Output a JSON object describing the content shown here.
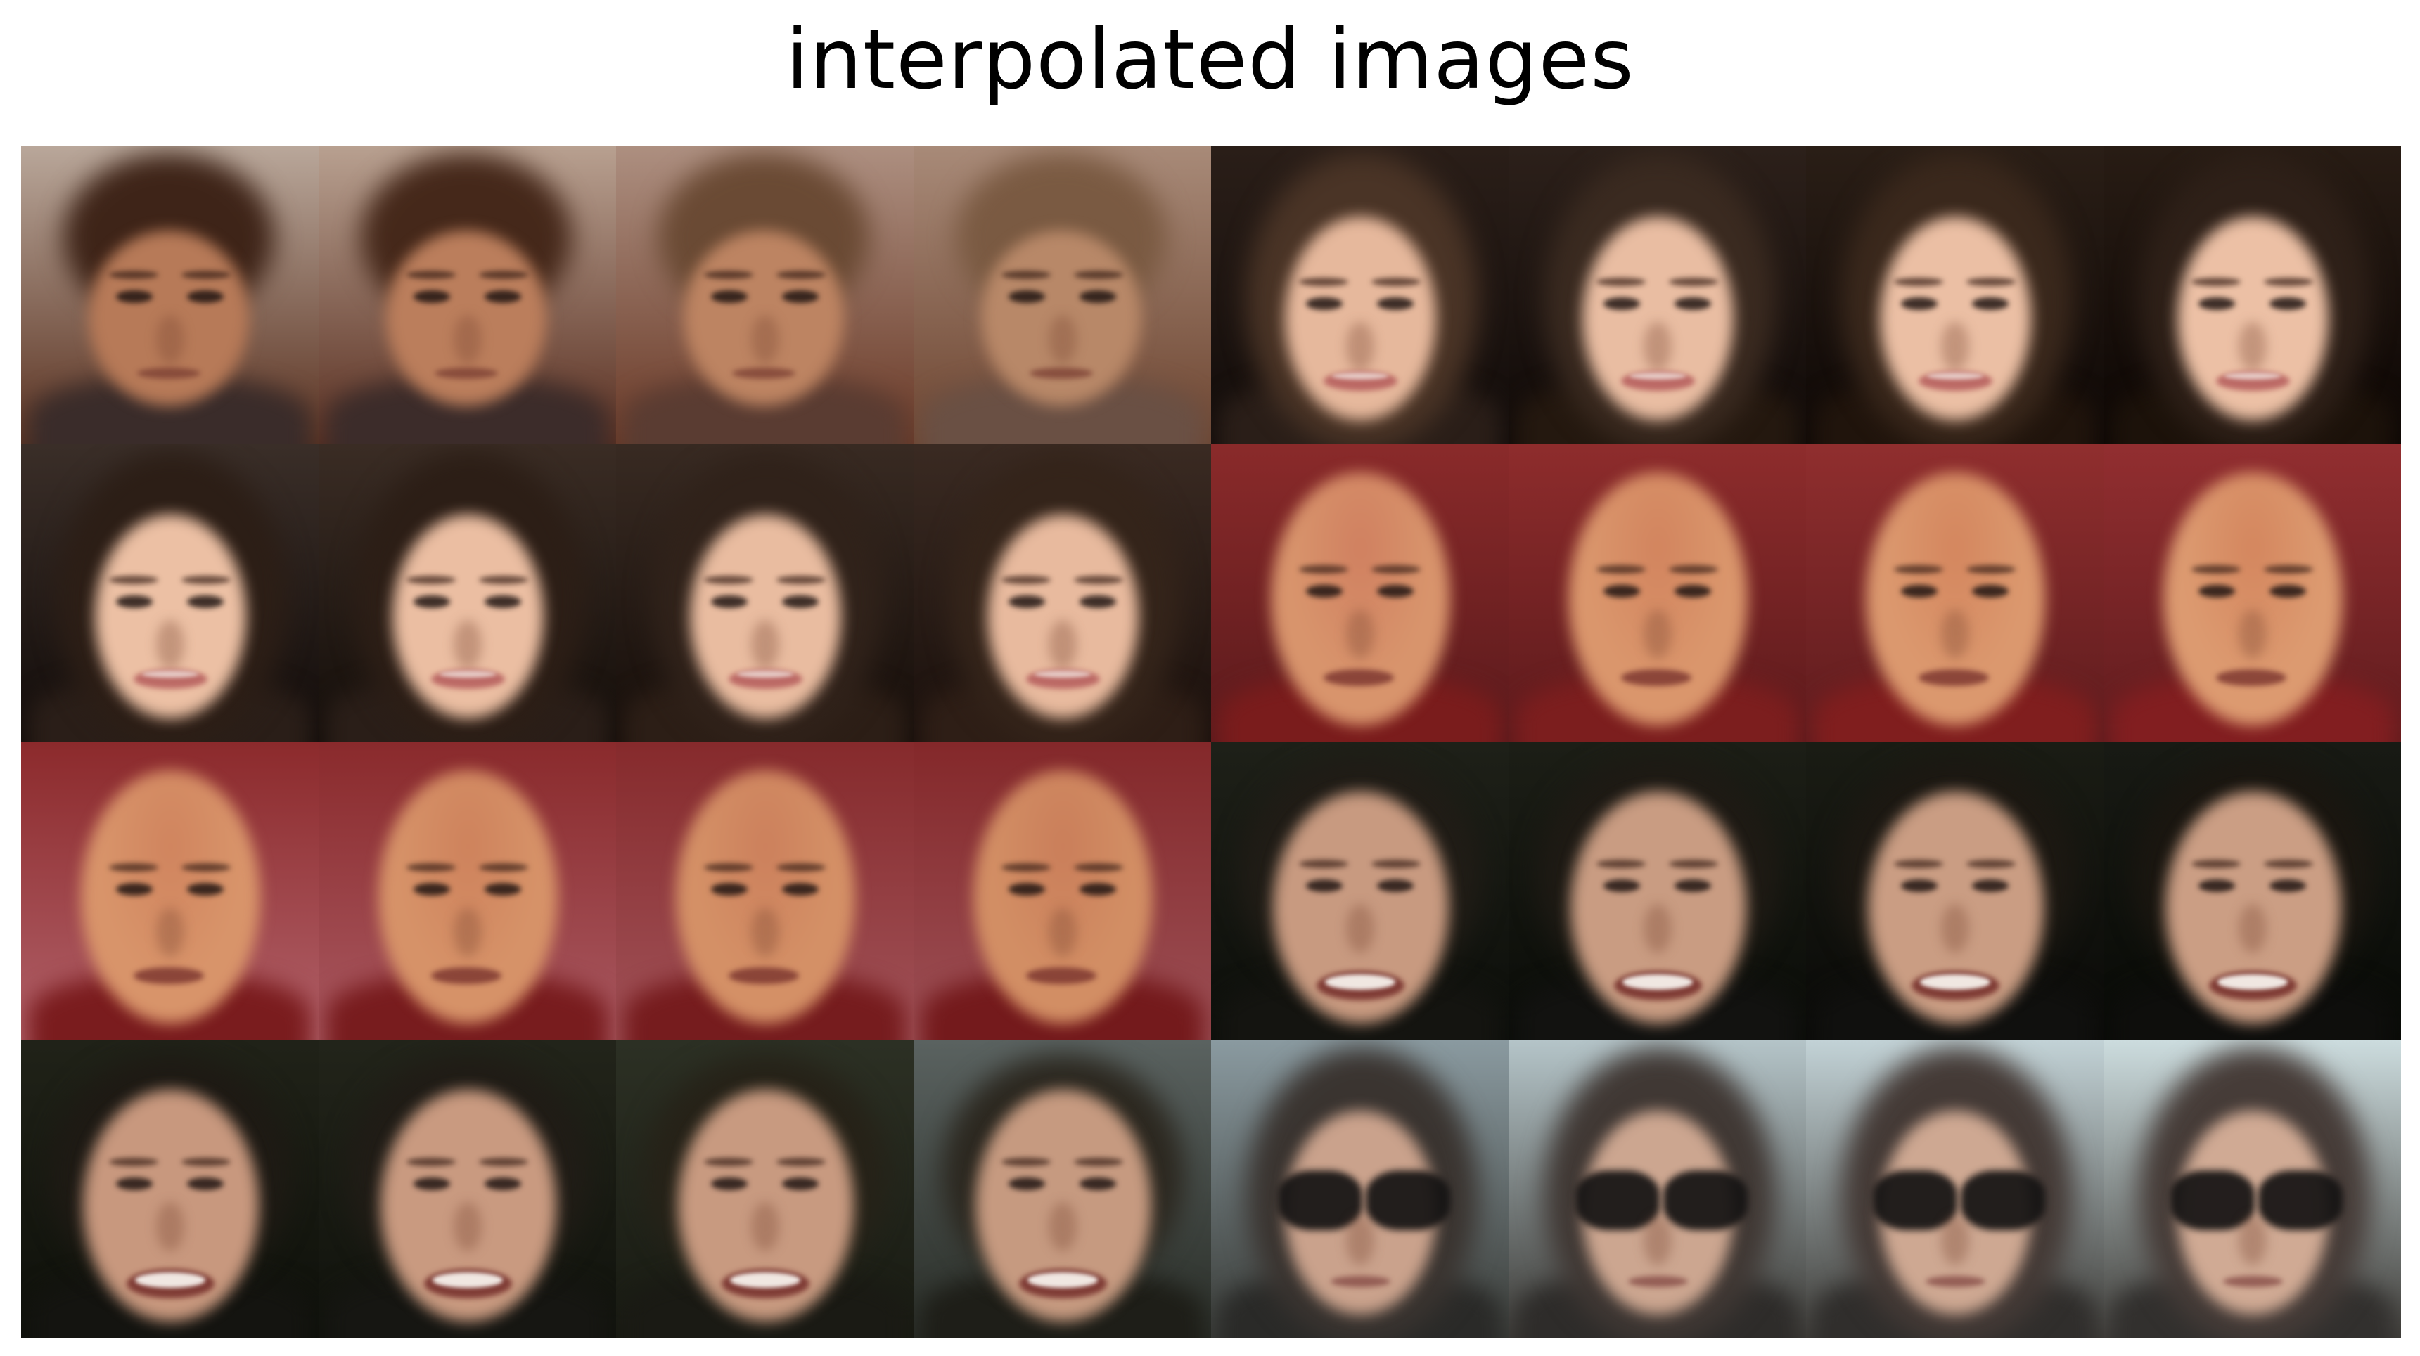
{
  "title": "interpolated images",
  "grid": {
    "rows": 4,
    "cols": 8,
    "tiles": [
      {
        "bg": "#b9a79a",
        "bg2": "#5b3322",
        "hair": "#3e2418",
        "skin": "#b77a58",
        "shirt": "#3a2c2a",
        "type": "boy"
      },
      {
        "bg": "#b8a090",
        "bg2": "#5a3022",
        "hair": "#45281a",
        "skin": "#bb7e5c",
        "shirt": "#3c2c2a",
        "type": "boy"
      },
      {
        "bg": "#ad8f80",
        "bg2": "#6a3a28",
        "hair": "#6a4a34",
        "skin": "#bd8462",
        "shirt": "#5a3c32",
        "type": "boy"
      },
      {
        "bg": "#a88a78",
        "bg2": "#6e4632",
        "hair": "#7a5a42",
        "skin": "#b88868",
        "shirt": "#6a5044",
        "type": "boy"
      },
      {
        "bg": "#2a1e18",
        "bg2": "#120c0a",
        "hair": "#4a3426",
        "skin": "#e6b89c",
        "shirt": "#2a1e18",
        "type": "woman"
      },
      {
        "bg": "#2c201a",
        "bg2": "#100a08",
        "hair": "#3a2a20",
        "skin": "#e9bda2",
        "shirt": "#24180f",
        "type": "woman"
      },
      {
        "bg": "#2a1e16",
        "bg2": "#0e0806",
        "hair": "#3a281c",
        "skin": "#ebbfa4",
        "shirt": "#20140c",
        "type": "woman"
      },
      {
        "bg": "#281c14",
        "bg2": "#0c0604",
        "hair": "#2e2018",
        "skin": "#ecc0a5",
        "shirt": "#1c120a",
        "type": "woman"
      },
      {
        "bg": "#3a2e28",
        "bg2": "#120c0a",
        "hair": "#2c1e16",
        "skin": "#ecc0a4",
        "shirt": "#2a1e18",
        "type": "woman"
      },
      {
        "bg": "#3a2c24",
        "bg2": "#140e0a",
        "hair": "#2c1e16",
        "skin": "#ebbea2",
        "shirt": "#2a1e18",
        "type": "woman"
      },
      {
        "bg": "#382a22",
        "bg2": "#160e0a",
        "hair": "#30221a",
        "skin": "#e9bca0",
        "shirt": "#2c1e16",
        "type": "woman"
      },
      {
        "bg": "#3a2a22",
        "bg2": "#1a100c",
        "hair": "#34241a",
        "skin": "#e8ba9e",
        "shirt": "#2e1e16",
        "type": "woman"
      },
      {
        "bg": "#8a2a2a",
        "bg2": "#5a1a1c",
        "hair": "#d08060",
        "skin": "#d8946c",
        "shirt": "#7a1c1c",
        "type": "bald"
      },
      {
        "bg": "#8e2c2c",
        "bg2": "#5c1a1c",
        "hair": "#d2845e",
        "skin": "#da966c",
        "shirt": "#7c1e1e",
        "type": "bald"
      },
      {
        "bg": "#902e2e",
        "bg2": "#5e1c1e",
        "hair": "#d4865e",
        "skin": "#db986e",
        "shirt": "#801e1e",
        "type": "bald"
      },
      {
        "bg": "#922e30",
        "bg2": "#601c1e",
        "hair": "#d4865e",
        "skin": "#dc9a70",
        "shirt": "#821e20",
        "type": "bald"
      },
      {
        "bg": "#8c2a2c",
        "bg2": "#b06068",
        "hair": "#d0845e",
        "skin": "#d8946a",
        "shirt": "#7a1c1e",
        "type": "bald"
      },
      {
        "bg": "#8a2a2c",
        "bg2": "#a85860",
        "hair": "#ce825c",
        "skin": "#d69268",
        "shirt": "#781c1e",
        "type": "bald"
      },
      {
        "bg": "#862a2c",
        "bg2": "#a05258",
        "hair": "#cc805c",
        "skin": "#d49066",
        "shirt": "#761c1e",
        "type": "bald"
      },
      {
        "bg": "#84282a",
        "bg2": "#9c5056",
        "hair": "#ca7e5a",
        "skin": "#d28e64",
        "shirt": "#741a1c",
        "type": "bald"
      },
      {
        "bg": "#1e2018",
        "bg2": "#0c0e0a",
        "hair": "#201c16",
        "skin": "#c89a80",
        "shirt": "#141410",
        "type": "smile"
      },
      {
        "bg": "#1c1e16",
        "bg2": "#0a0c08",
        "hair": "#1e1a14",
        "skin": "#c99c82",
        "shirt": "#121210",
        "type": "smile"
      },
      {
        "bg": "#1a1c14",
        "bg2": "#0a0a08",
        "hair": "#1c1812",
        "skin": "#ca9d83",
        "shirt": "#10100e",
        "type": "smile"
      },
      {
        "bg": "#181a14",
        "bg2": "#080a06",
        "hair": "#1a1610",
        "skin": "#cb9e84",
        "shirt": "#0e0e0c",
        "type": "smile"
      },
      {
        "bg": "#202218",
        "bg2": "#0e100a",
        "hair": "#1e1a14",
        "skin": "#c8987e",
        "shirt": "#141410",
        "type": "smile"
      },
      {
        "bg": "#22241a",
        "bg2": "#10120c",
        "hair": "#201c16",
        "skin": "#c99a80",
        "shirt": "#161612",
        "type": "smile"
      },
      {
        "bg": "#2c3024",
        "bg2": "#181a12",
        "hair": "#262218",
        "skin": "#c89a80",
        "shirt": "#1a1a14",
        "type": "smile"
      },
      {
        "bg": "#5a6260",
        "bg2": "#2a2e28",
        "hair": "#2c2820",
        "skin": "#c69a80",
        "shirt": "#1e1e18",
        "type": "smile"
      },
      {
        "bg": "#8a9aa0",
        "bg2": "#3a3c38",
        "hair": "#3a3430",
        "skin": "#caa28c",
        "shirt": "#2a2a28",
        "type": "glasses"
      },
      {
        "bg": "#b4c4c8",
        "bg2": "#3e3c38",
        "hair": "#403834",
        "skin": "#cca690",
        "shirt": "#2e2c2a",
        "type": "glasses"
      },
      {
        "bg": "#c2d2d6",
        "bg2": "#403e3a",
        "hair": "#443a36",
        "skin": "#cea892",
        "shirt": "#302e2c",
        "type": "glasses"
      },
      {
        "bg": "#ccdcde",
        "bg2": "#42403c",
        "hair": "#463c38",
        "skin": "#d0aa94",
        "shirt": "#32302e",
        "type": "glasses"
      }
    ]
  }
}
